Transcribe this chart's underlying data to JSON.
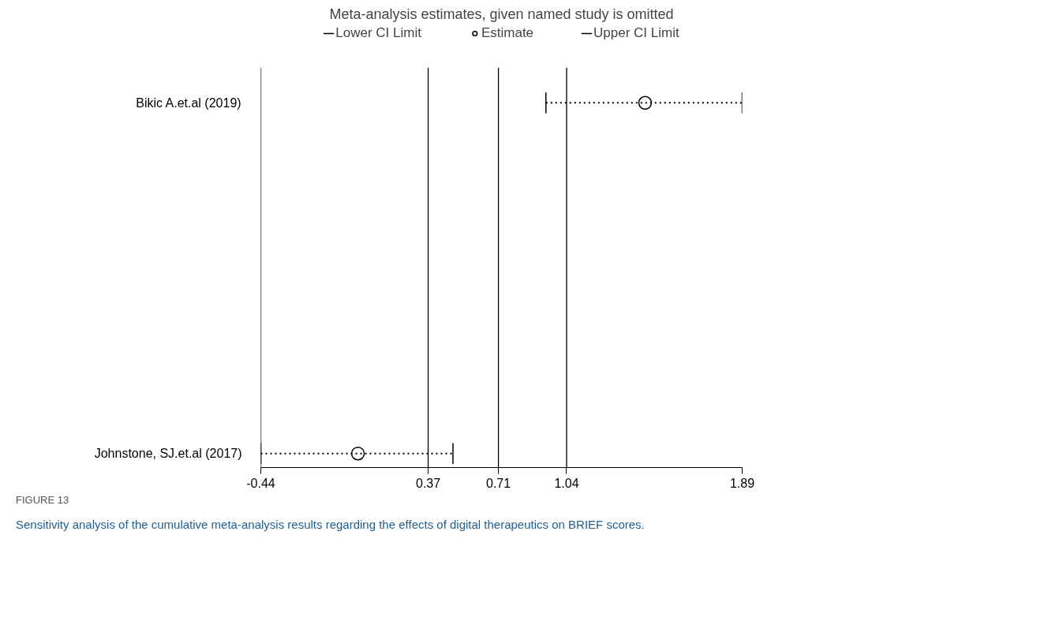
{
  "chart_data": {
    "type": "scatter",
    "orientation": "horizontal",
    "title": "Meta-analysis estimates, given named study is omitted",
    "categories": [
      "Bikic A.et.al (2019)",
      "Johnstone, SJ.et.al (2017)"
    ],
    "series": [
      {
        "name": "Estimate",
        "color": "#000000",
        "marker": "circle",
        "values": [
          1.42,
          0.03
        ],
        "errors": [
          [
            0.94,
            1.89
          ],
          [
            -0.44,
            0.49
          ]
        ],
        "line_style": "dotted"
      }
    ],
    "xlim": [
      -0.44,
      1.89
    ],
    "xticks": [
      -0.44,
      0.37,
      0.71,
      1.04,
      1.89
    ],
    "ref_lines": [
      {
        "axis": "x",
        "value": 0.37,
        "color": "#000000"
      },
      {
        "axis": "x",
        "value": 0.71,
        "color": "#000000"
      },
      {
        "axis": "x",
        "value": 1.04,
        "color": "#000000"
      }
    ],
    "grid": false,
    "legend": "top",
    "annotations": [
      "Lower CI Limit",
      "Upper CI Limit",
      "FIGURE 13",
      "Sensitivity analysis of the cumulative meta-analysis results regarding the effects of digital therapeutics on BRIEF scores."
    ]
  }
}
